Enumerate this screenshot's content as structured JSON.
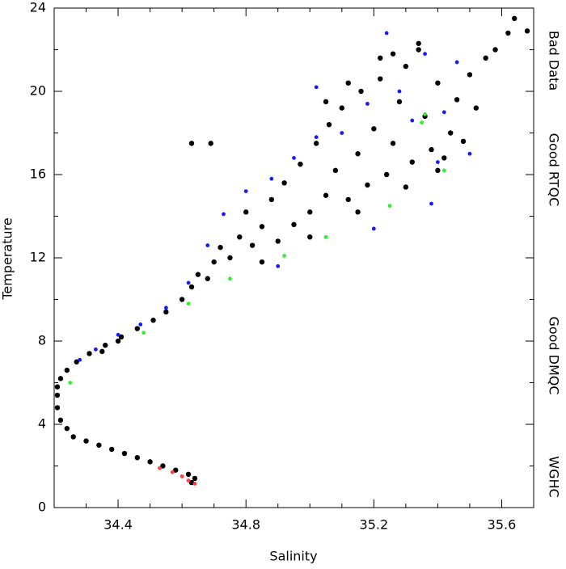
{
  "chart_data": {
    "type": "scatter",
    "x_label": "Salinity",
    "y_label": "Temperature",
    "xlim": [
      34.2,
      35.7
    ],
    "ylim": [
      0,
      24
    ],
    "xticks": [
      34.4,
      34.8,
      35.2,
      35.6
    ],
    "yticks": [
      0,
      4,
      8,
      12,
      16,
      20,
      24
    ],
    "xminorticks": [
      34.3,
      34.5,
      34.6,
      34.7,
      34.9,
      35.0,
      35.1,
      35.3,
      35.4,
      35.5
    ],
    "yminorticks": [
      2,
      6,
      10,
      14,
      18,
      22
    ],
    "series": [
      {
        "name": "Bad Data",
        "color": "#ff4040",
        "x": [
          34.62,
          34.6,
          34.57,
          34.53,
          34.64
        ],
        "values": [
          1.3,
          1.5,
          1.7,
          1.9,
          1.15
        ]
      },
      {
        "name": "Good RTQC",
        "color": "#1a1aff",
        "x": [
          34.28,
          34.33,
          34.4,
          34.47,
          34.55,
          34.62,
          34.68,
          34.73,
          34.8,
          34.88,
          34.95,
          35.02,
          35.02,
          35.1,
          35.18,
          35.24,
          35.28,
          35.32,
          35.36,
          35.4,
          35.42,
          35.46,
          35.5,
          35.38,
          35.2,
          34.9
        ],
        "values": [
          7.1,
          7.6,
          8.3,
          8.8,
          9.6,
          10.8,
          12.6,
          14.1,
          15.2,
          15.8,
          16.8,
          17.8,
          20.2,
          18.0,
          19.4,
          22.8,
          20.0,
          18.6,
          21.8,
          16.6,
          19.0,
          21.4,
          17.0,
          14.6,
          13.4,
          11.6
        ]
      },
      {
        "name": "Good DMQC",
        "color": "#000000",
        "x": [
          34.63,
          34.64,
          34.62,
          34.58,
          34.54,
          34.5,
          34.46,
          34.42,
          34.38,
          34.34,
          34.3,
          34.26,
          34.24,
          34.22,
          34.21,
          34.21,
          34.21,
          34.22,
          34.24,
          34.27,
          34.31,
          34.36,
          34.41,
          34.46,
          34.51,
          34.55,
          34.6,
          34.63,
          34.65,
          34.68,
          34.7,
          34.72,
          34.75,
          34.78,
          34.8,
          34.82,
          34.85,
          34.88,
          34.9,
          34.92,
          34.95,
          34.97,
          35.0,
          35.02,
          35.05,
          35.06,
          35.08,
          35.1,
          35.12,
          35.15,
          35.16,
          35.18,
          35.2,
          35.22,
          35.24,
          35.26,
          35.28,
          35.3,
          35.32,
          35.34,
          35.36,
          35.38,
          35.4,
          35.42,
          35.44,
          35.46,
          35.48,
          35.5,
          35.52,
          35.55,
          35.58,
          35.62,
          35.64,
          35.68,
          34.63,
          34.69,
          34.4,
          34.35,
          34.85,
          35.0,
          35.15,
          35.3,
          35.4,
          35.05,
          35.12,
          35.22,
          35.26,
          35.34
        ],
        "values": [
          1.2,
          1.4,
          1.6,
          1.8,
          2.0,
          2.2,
          2.4,
          2.6,
          2.8,
          3.0,
          3.2,
          3.4,
          3.8,
          4.2,
          4.8,
          5.4,
          5.8,
          6.2,
          6.6,
          7.0,
          7.4,
          7.8,
          8.2,
          8.6,
          9.0,
          9.4,
          10.0,
          10.6,
          11.2,
          11.0,
          11.8,
          12.5,
          12.0,
          13.0,
          14.2,
          12.6,
          13.5,
          14.8,
          12.8,
          15.6,
          13.6,
          16.5,
          14.2,
          17.5,
          15.0,
          18.4,
          16.2,
          19.2,
          14.8,
          17.0,
          20.0,
          15.5,
          18.2,
          20.6,
          16.0,
          17.5,
          19.5,
          21.2,
          16.6,
          22.0,
          18.8,
          17.2,
          20.4,
          16.8,
          18.0,
          19.6,
          17.6,
          20.8,
          19.2,
          21.6,
          22.0,
          22.8,
          23.5,
          22.9,
          17.5,
          17.5,
          8.0,
          7.5,
          11.8,
          13.0,
          14.2,
          15.4,
          16.2,
          19.5,
          20.4,
          21.6,
          21.8,
          22.3
        ]
      },
      {
        "name": "WGHC",
        "color": "#33ee33",
        "x": [
          34.25,
          34.48,
          34.62,
          34.75,
          34.92,
          35.05,
          35.25,
          35.42,
          35.35,
          35.36
        ],
        "values": [
          6.0,
          8.4,
          9.8,
          11.0,
          12.1,
          13.0,
          14.5,
          16.2,
          18.5,
          18.9
        ]
      }
    ]
  }
}
